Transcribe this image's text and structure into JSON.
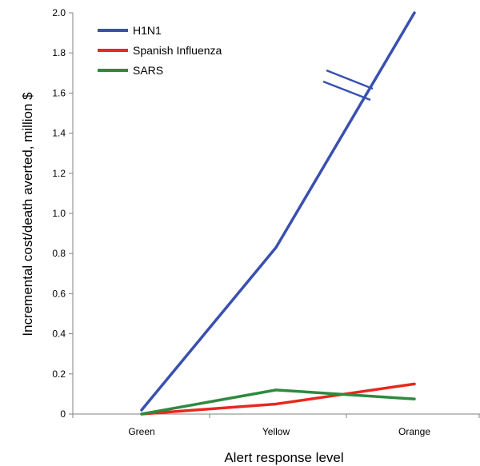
{
  "chart_data": {
    "type": "line",
    "categories": [
      "Green",
      "Yellow",
      "Orange"
    ],
    "series": [
      {
        "name": "H1N1",
        "color": "#3a50b0",
        "values": [
          0.02,
          0.83,
          2.0
        ]
      },
      {
        "name": "Spanish Influenza",
        "color": "#e8281e",
        "values": [
          0.0,
          0.05,
          0.15
        ]
      },
      {
        "name": "SARS",
        "color": "#2e8a3e",
        "values": [
          0.0,
          0.12,
          0.075
        ]
      }
    ],
    "xlabel": "Alert response level",
    "ylabel": "Incremental cost/death averted, million $",
    "ylim": [
      0,
      2.0
    ],
    "yticks": [
      "0",
      "0.2",
      "0.4",
      "0.6",
      "0.8",
      "1.0",
      "1.2",
      "1.4",
      "1.6",
      "1.8",
      "2.0"
    ],
    "grid": false,
    "legend": "top-left",
    "annotations": [
      "axis break marks on H1N1 line between Yellow and Orange"
    ]
  }
}
